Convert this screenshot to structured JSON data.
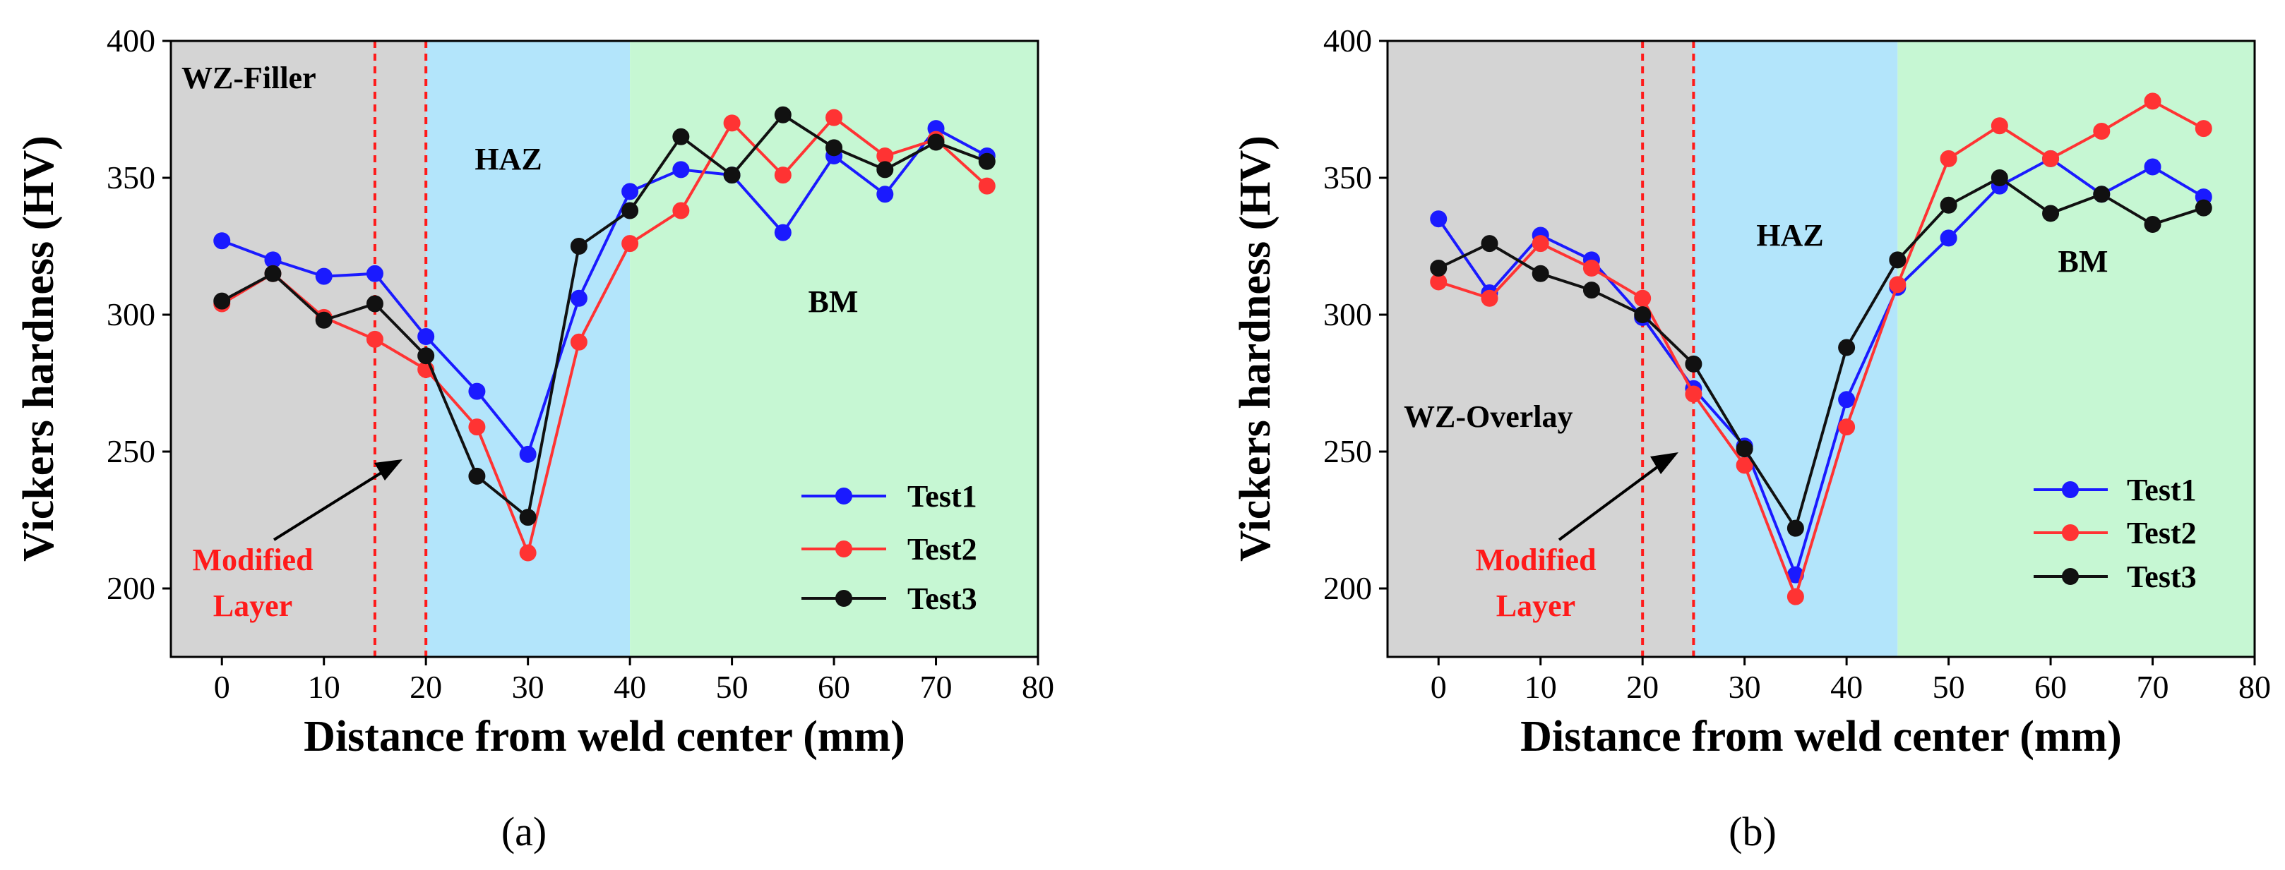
{
  "chart_data": [
    {
      "type": "line",
      "panel_label": "(a)",
      "xlabel": "Distance from weld center (mm)",
      "ylabel": "Vickers hardness (HV)",
      "xlim": [
        -5,
        80
      ],
      "ylim": [
        175,
        400
      ],
      "xticks": [
        0,
        10,
        20,
        30,
        40,
        50,
        60,
        70,
        80
      ],
      "yticks": [
        200,
        250,
        300,
        350,
        400
      ],
      "regions": [
        {
          "name": "WZ-Filler",
          "x0": -5,
          "x1": 20,
          "color": "#d4d4d4"
        },
        {
          "name": "HAZ",
          "x0": 20,
          "x1": 40,
          "color": "#b3e5fb"
        },
        {
          "name": "BM",
          "x0": 40,
          "x1": 80,
          "color": "#c6f7d3"
        }
      ],
      "modified_layer": {
        "label_line1": "Modified",
        "label_line2": "Layer",
        "x0": 15,
        "x1": 20,
        "color": "#ff1a1a"
      },
      "legend_position": "bottom-right",
      "x": [
        0,
        5,
        10,
        15,
        20,
        25,
        30,
        35,
        40,
        45,
        50,
        55,
        60,
        65,
        70,
        75
      ],
      "series": [
        {
          "name": "Test1",
          "color": "#1a1aff",
          "values": [
            327,
            320,
            314,
            315,
            292,
            272,
            249,
            306,
            345,
            353,
            351,
            330,
            358,
            344,
            368,
            358
          ]
        },
        {
          "name": "Test2",
          "color": "#ff3333",
          "values": [
            304,
            315,
            299,
            291,
            280,
            259,
            213,
            290,
            326,
            338,
            370,
            351,
            372,
            358,
            364,
            347
          ]
        },
        {
          "name": "Test3",
          "color": "#111111",
          "values": [
            305,
            315,
            298,
            304,
            285,
            241,
            226,
            325,
            338,
            365,
            351,
            373,
            361,
            353,
            363,
            356
          ]
        }
      ]
    },
    {
      "type": "line",
      "panel_label": "(b)",
      "xlabel": "Distance from weld center (mm)",
      "ylabel": "Vickers hardness (HV)",
      "xlim": [
        -5,
        80
      ],
      "ylim": [
        175,
        400
      ],
      "xticks": [
        0,
        10,
        20,
        30,
        40,
        50,
        60,
        70,
        80
      ],
      "yticks": [
        200,
        250,
        300,
        350,
        400
      ],
      "regions": [
        {
          "name": "WZ-Overlay",
          "x0": -5,
          "x1": 25,
          "color": "#d4d4d4"
        },
        {
          "name": "HAZ",
          "x0": 25,
          "x1": 45,
          "color": "#b3e5fb"
        },
        {
          "name": "BM",
          "x0": 45,
          "x1": 80,
          "color": "#c6f7d3"
        }
      ],
      "modified_layer": {
        "label_line1": "Modified",
        "label_line2": "Layer",
        "x0": 20,
        "x1": 25,
        "color": "#ff1a1a"
      },
      "legend_position": "bottom-right",
      "x": [
        0,
        5,
        10,
        15,
        20,
        25,
        30,
        35,
        40,
        45,
        50,
        55,
        60,
        65,
        70,
        75
      ],
      "series": [
        {
          "name": "Test1",
          "color": "#1a1aff",
          "values": [
            335,
            308,
            329,
            320,
            299,
            273,
            252,
            205,
            269,
            310,
            328,
            347,
            357,
            344,
            354,
            343
          ]
        },
        {
          "name": "Test2",
          "color": "#ff3333",
          "values": [
            312,
            306,
            326,
            317,
            306,
            271,
            245,
            197,
            259,
            311,
            357,
            369,
            357,
            367,
            378,
            368
          ]
        },
        {
          "name": "Test3",
          "color": "#111111",
          "values": [
            317,
            326,
            315,
            309,
            300,
            282,
            251,
            222,
            288,
            320,
            340,
            350,
            337,
            344,
            333,
            339
          ]
        }
      ]
    }
  ]
}
